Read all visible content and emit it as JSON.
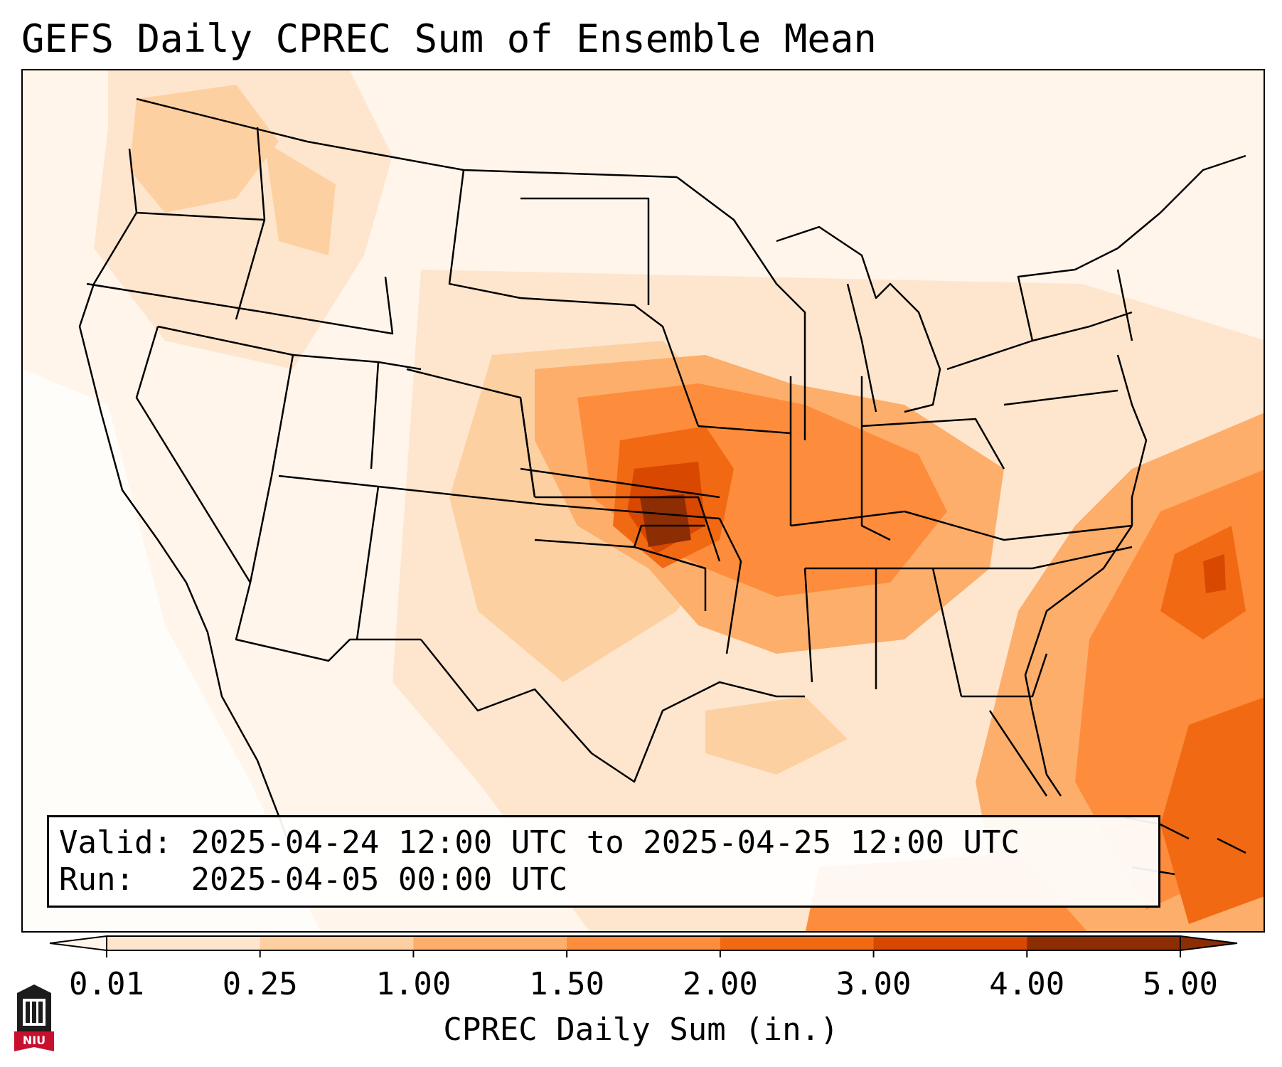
{
  "title": "GEFS Daily CPREC Sum of Ensemble Mean",
  "info": {
    "valid_label": "Valid:",
    "valid_value": "2025-04-24 12:00 UTC to 2025-04-25 12:00 UTC",
    "run_label": "Run:",
    "run_value": "2025-04-05 00:00 UTC"
  },
  "colorbar": {
    "label": "CPREC Daily Sum (in.)",
    "ticks": [
      "0.01",
      "0.25",
      "1.00",
      "1.50",
      "2.00",
      "3.00",
      "4.00",
      "5.00"
    ],
    "colors": [
      "#fff5eb",
      "#fee6ce",
      "#fdd0a2",
      "#fdae6b",
      "#fd8d3c",
      "#f16913",
      "#d94801",
      "#8c2d04"
    ],
    "extend": "both"
  },
  "logo": {
    "text": "NIU",
    "colors": {
      "seal": "#1c1c1c",
      "banner": "#c8102e"
    }
  },
  "map": {
    "region": "Contiguous United States and Gulf of Mexico",
    "max_region": "Oklahoma / southeast Kansas",
    "colors": {
      "borders": "#000000",
      "land_background": "#fff3e7"
    }
  }
}
